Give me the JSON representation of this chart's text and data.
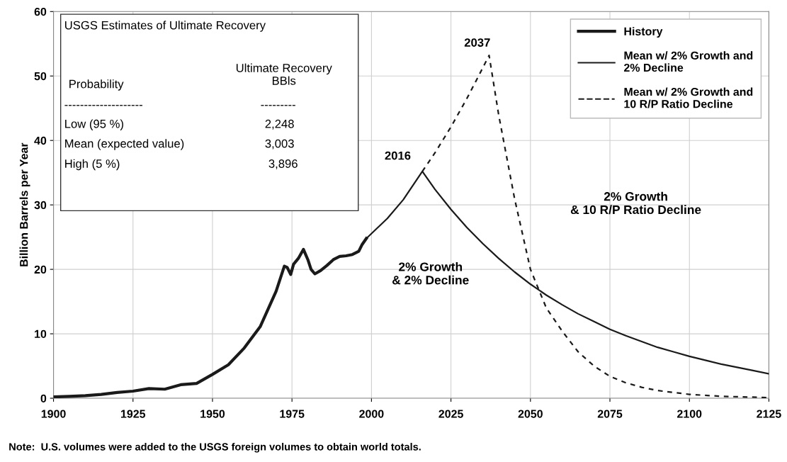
{
  "chart_data": {
    "type": "line",
    "ylabel": "Billion Barrels per Year",
    "xlim": [
      1900,
      2125
    ],
    "xticks": [
      1900,
      1925,
      1950,
      1975,
      2000,
      2025,
      2050,
      2075,
      2100,
      2125
    ],
    "ylim": [
      0,
      60
    ],
    "yticks": [
      0,
      10,
      20,
      30,
      40,
      50,
      60
    ],
    "grid": true,
    "legend": "top right",
    "marker": "none",
    "series": [
      {
        "name": "History",
        "color": "#1a1a1a",
        "line_style": "solid",
        "x": [
          1900,
          1905,
          1910,
          1915,
          1920,
          1925,
          1930,
          1935,
          1940,
          1945,
          1950,
          1955,
          1960,
          1965,
          1970,
          1972.6,
          1973.5,
          1974.6,
          1975.5,
          1977,
          1978.6,
          1980,
          1981,
          1982.2,
          1984,
          1986,
          1988,
          1990,
          1992,
          1994,
          1996,
          1997,
          1998.4
        ],
        "values": [
          0.2,
          0.3,
          0.4,
          0.6,
          0.9,
          1.1,
          1.5,
          1.4,
          2.1,
          2.3,
          3.7,
          5.2,
          7.8,
          11.1,
          16.6,
          20.5,
          20.3,
          19.2,
          20.8,
          21.7,
          23.1,
          21.5,
          20.0,
          19.3,
          19.8,
          20.6,
          21.5,
          22.0,
          22.1,
          22.3,
          22.8,
          23.8,
          24.8
        ]
      },
      {
        "name": "Mean w/ 2% Growth and\n2% Decline",
        "color": "#1a1a1a",
        "line_style": "solid",
        "x": [
          1998.4,
          2005,
          2010,
          2016,
          2020,
          2025,
          2030,
          2035,
          2040,
          2045,
          2050,
          2055,
          2060,
          2065,
          2070,
          2075,
          2080,
          2085,
          2090,
          2095,
          2100,
          2105,
          2110,
          2115,
          2120,
          2125
        ],
        "values": [
          24.8,
          27.9,
          30.8,
          35.2,
          32.4,
          29.3,
          26.5,
          24.0,
          21.7,
          19.6,
          17.7,
          16.0,
          14.5,
          13.1,
          11.9,
          10.7,
          9.7,
          8.8,
          7.9,
          7.2,
          6.5,
          5.9,
          5.3,
          4.8,
          4.3,
          3.8
        ]
      },
      {
        "name": "Mean w/ 2% Growth and\n10 R/P Ratio Decline",
        "color": "#1a1a1a",
        "line_style": "dashed",
        "x": [
          2016,
          2020,
          2025,
          2030,
          2034,
          2037,
          2040,
          2045,
          2050,
          2055,
          2060,
          2065,
          2070,
          2075,
          2080,
          2085,
          2090,
          2100,
          2110,
          2125
        ],
        "values": [
          35.2,
          38.1,
          42.1,
          46.5,
          50.3,
          53.2,
          44.0,
          31.0,
          20.0,
          14.0,
          10.4,
          7.2,
          5.0,
          3.4,
          2.4,
          1.7,
          1.2,
          0.6,
          0.3,
          0.1
        ]
      }
    ],
    "annotations": [
      "USGS Estimates of Ultimate Recovery",
      "Probability",
      "Ultimate Recovery\nBBls",
      "--------------------",
      "---------",
      "Low (95 %)",
      "2,248",
      "Mean (expected value)",
      "3,003",
      "High (5 %)",
      "3,896",
      {
        "text": "2016",
        "x": 2016,
        "y": 35.2
      },
      {
        "text": "2037",
        "x": 2037,
        "y": 53.2
      },
      "2% Growth\n& 2% Decline",
      "2% Growth\n& 10 R/P Ratio Decline",
      "Note:  U.S. volumes were added to the USGS foreign volumes to obtain world totals."
    ]
  }
}
